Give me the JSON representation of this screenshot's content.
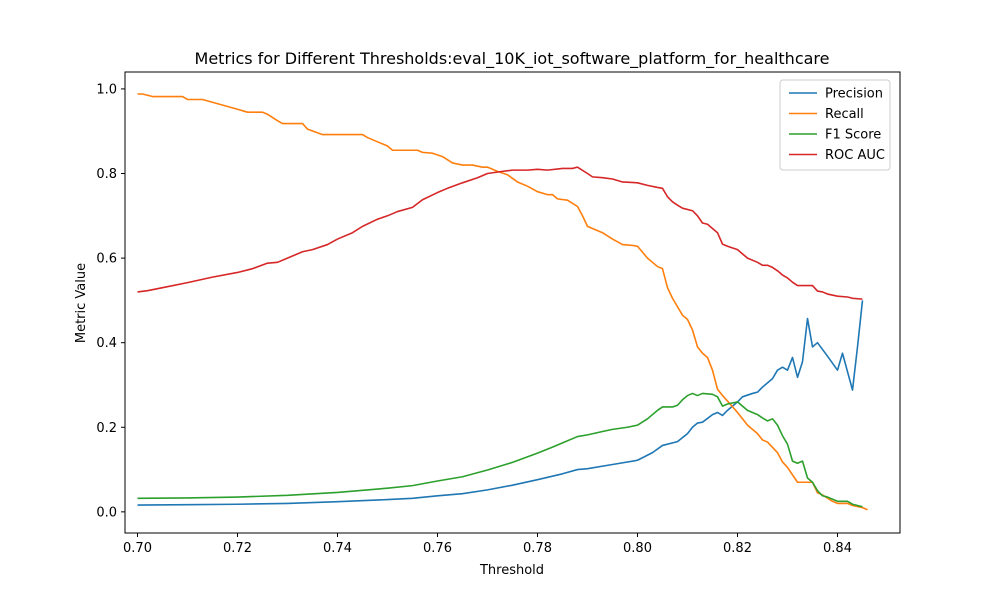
{
  "chart_data": {
    "type": "line",
    "title": "Metrics for Different Thresholds:eval_10K_iot_software_platform_for_healthcare",
    "xlabel": "Threshold",
    "ylabel": "Metric Value",
    "xlim": [
      0.6975,
      0.8525
    ],
    "ylim": [
      -0.05,
      1.04
    ],
    "xticks": [
      0.7,
      0.72,
      0.74,
      0.76,
      0.78,
      0.8,
      0.82,
      0.84
    ],
    "xtick_labels": [
      "0.70",
      "0.72",
      "0.74",
      "0.76",
      "0.78",
      "0.80",
      "0.82",
      "0.84"
    ],
    "yticks": [
      0.0,
      0.2,
      0.4,
      0.6,
      0.8,
      1.0
    ],
    "ytick_labels": [
      "0.0",
      "0.2",
      "0.4",
      "0.6",
      "0.8",
      "1.0"
    ],
    "grid": false,
    "legend_position": "top-right",
    "series": [
      {
        "name": "Precision",
        "color": "#1f77b4",
        "points": [
          [
            0.7,
            0.016
          ],
          [
            0.71,
            0.017
          ],
          [
            0.72,
            0.018
          ],
          [
            0.73,
            0.02
          ],
          [
            0.74,
            0.024
          ],
          [
            0.75,
            0.029
          ],
          [
            0.755,
            0.032
          ],
          [
            0.76,
            0.038
          ],
          [
            0.765,
            0.043
          ],
          [
            0.77,
            0.052
          ],
          [
            0.775,
            0.063
          ],
          [
            0.78,
            0.076
          ],
          [
            0.785,
            0.09
          ],
          [
            0.788,
            0.1
          ],
          [
            0.79,
            0.102
          ],
          [
            0.795,
            0.112
          ],
          [
            0.8,
            0.122
          ],
          [
            0.803,
            0.14
          ],
          [
            0.805,
            0.157
          ],
          [
            0.808,
            0.166
          ],
          [
            0.81,
            0.185
          ],
          [
            0.811,
            0.2
          ],
          [
            0.812,
            0.21
          ],
          [
            0.813,
            0.212
          ],
          [
            0.815,
            0.23
          ],
          [
            0.816,
            0.235
          ],
          [
            0.817,
            0.228
          ],
          [
            0.818,
            0.24
          ],
          [
            0.82,
            0.26
          ],
          [
            0.821,
            0.272
          ],
          [
            0.823,
            0.28
          ],
          [
            0.824,
            0.283
          ],
          [
            0.825,
            0.295
          ],
          [
            0.827,
            0.315
          ],
          [
            0.828,
            0.335
          ],
          [
            0.829,
            0.342
          ],
          [
            0.83,
            0.335
          ],
          [
            0.831,
            0.365
          ],
          [
            0.832,
            0.318
          ],
          [
            0.833,
            0.355
          ],
          [
            0.834,
            0.457
          ],
          [
            0.835,
            0.39
          ],
          [
            0.836,
            0.4
          ],
          [
            0.838,
            0.368
          ],
          [
            0.84,
            0.335
          ],
          [
            0.841,
            0.375
          ],
          [
            0.843,
            0.288
          ],
          [
            0.844,
            0.39
          ],
          [
            0.845,
            0.5
          ]
        ]
      },
      {
        "name": "Recall",
        "color": "#ff7f0e",
        "points": [
          [
            0.7,
            0.988
          ],
          [
            0.701,
            0.988
          ],
          [
            0.703,
            0.982
          ],
          [
            0.709,
            0.982
          ],
          [
            0.71,
            0.975
          ],
          [
            0.713,
            0.975
          ],
          [
            0.72,
            0.952
          ],
          [
            0.722,
            0.945
          ],
          [
            0.725,
            0.945
          ],
          [
            0.726,
            0.94
          ],
          [
            0.728,
            0.925
          ],
          [
            0.729,
            0.918
          ],
          [
            0.733,
            0.918
          ],
          [
            0.734,
            0.905
          ],
          [
            0.737,
            0.892
          ],
          [
            0.745,
            0.892
          ],
          [
            0.746,
            0.885
          ],
          [
            0.749,
            0.87
          ],
          [
            0.75,
            0.865
          ],
          [
            0.751,
            0.855
          ],
          [
            0.756,
            0.855
          ],
          [
            0.757,
            0.85
          ],
          [
            0.759,
            0.848
          ],
          [
            0.761,
            0.84
          ],
          [
            0.763,
            0.825
          ],
          [
            0.765,
            0.82
          ],
          [
            0.767,
            0.82
          ],
          [
            0.769,
            0.815
          ],
          [
            0.77,
            0.815
          ],
          [
            0.772,
            0.805
          ],
          [
            0.774,
            0.797
          ],
          [
            0.776,
            0.78
          ],
          [
            0.778,
            0.77
          ],
          [
            0.78,
            0.757
          ],
          [
            0.782,
            0.75
          ],
          [
            0.783,
            0.75
          ],
          [
            0.784,
            0.74
          ],
          [
            0.786,
            0.737
          ],
          [
            0.788,
            0.722
          ],
          [
            0.789,
            0.7
          ],
          [
            0.79,
            0.675
          ],
          [
            0.793,
            0.66
          ],
          [
            0.795,
            0.645
          ],
          [
            0.797,
            0.632
          ],
          [
            0.799,
            0.63
          ],
          [
            0.8,
            0.628
          ],
          [
            0.802,
            0.6
          ],
          [
            0.804,
            0.58
          ],
          [
            0.805,
            0.575
          ],
          [
            0.806,
            0.53
          ],
          [
            0.807,
            0.505
          ],
          [
            0.808,
            0.485
          ],
          [
            0.809,
            0.465
          ],
          [
            0.81,
            0.455
          ],
          [
            0.811,
            0.43
          ],
          [
            0.812,
            0.39
          ],
          [
            0.813,
            0.375
          ],
          [
            0.814,
            0.365
          ],
          [
            0.815,
            0.335
          ],
          [
            0.816,
            0.29
          ],
          [
            0.817,
            0.275
          ],
          [
            0.818,
            0.262
          ],
          [
            0.82,
            0.235
          ],
          [
            0.822,
            0.205
          ],
          [
            0.824,
            0.185
          ],
          [
            0.825,
            0.17
          ],
          [
            0.826,
            0.165
          ],
          [
            0.828,
            0.14
          ],
          [
            0.829,
            0.118
          ],
          [
            0.83,
            0.105
          ],
          [
            0.832,
            0.07
          ],
          [
            0.834,
            0.07
          ],
          [
            0.835,
            0.07
          ],
          [
            0.836,
            0.045
          ],
          [
            0.837,
            0.04
          ],
          [
            0.839,
            0.025
          ],
          [
            0.84,
            0.02
          ],
          [
            0.842,
            0.02
          ],
          [
            0.843,
            0.015
          ],
          [
            0.845,
            0.01
          ],
          [
            0.846,
            0.005
          ]
        ]
      },
      {
        "name": "F1 Score",
        "color": "#2ca02c",
        "points": [
          [
            0.7,
            0.032
          ],
          [
            0.71,
            0.033
          ],
          [
            0.72,
            0.035
          ],
          [
            0.73,
            0.039
          ],
          [
            0.74,
            0.046
          ],
          [
            0.75,
            0.056
          ],
          [
            0.755,
            0.062
          ],
          [
            0.76,
            0.073
          ],
          [
            0.765,
            0.083
          ],
          [
            0.77,
            0.099
          ],
          [
            0.775,
            0.117
          ],
          [
            0.78,
            0.139
          ],
          [
            0.783,
            0.153
          ],
          [
            0.785,
            0.163
          ],
          [
            0.788,
            0.178
          ],
          [
            0.79,
            0.182
          ],
          [
            0.793,
            0.19
          ],
          [
            0.795,
            0.195
          ],
          [
            0.798,
            0.2
          ],
          [
            0.8,
            0.205
          ],
          [
            0.802,
            0.22
          ],
          [
            0.804,
            0.24
          ],
          [
            0.805,
            0.248
          ],
          [
            0.807,
            0.248
          ],
          [
            0.808,
            0.252
          ],
          [
            0.809,
            0.265
          ],
          [
            0.81,
            0.275
          ],
          [
            0.811,
            0.28
          ],
          [
            0.812,
            0.275
          ],
          [
            0.813,
            0.28
          ],
          [
            0.815,
            0.278
          ],
          [
            0.816,
            0.272
          ],
          [
            0.817,
            0.25
          ],
          [
            0.818,
            0.255
          ],
          [
            0.82,
            0.26
          ],
          [
            0.821,
            0.25
          ],
          [
            0.822,
            0.24
          ],
          [
            0.823,
            0.235
          ],
          [
            0.824,
            0.23
          ],
          [
            0.825,
            0.222
          ],
          [
            0.826,
            0.215
          ],
          [
            0.827,
            0.22
          ],
          [
            0.828,
            0.205
          ],
          [
            0.829,
            0.18
          ],
          [
            0.83,
            0.16
          ],
          [
            0.831,
            0.12
          ],
          [
            0.832,
            0.115
          ],
          [
            0.833,
            0.12
          ],
          [
            0.834,
            0.08
          ],
          [
            0.835,
            0.07
          ],
          [
            0.836,
            0.05
          ],
          [
            0.837,
            0.038
          ],
          [
            0.838,
            0.035
          ],
          [
            0.84,
            0.025
          ],
          [
            0.842,
            0.025
          ],
          [
            0.843,
            0.018
          ],
          [
            0.845,
            0.012
          ]
        ]
      },
      {
        "name": "ROC AUC",
        "color": "#d62728",
        "points": [
          [
            0.7,
            0.52
          ],
          [
            0.702,
            0.523
          ],
          [
            0.705,
            0.53
          ],
          [
            0.71,
            0.542
          ],
          [
            0.715,
            0.555
          ],
          [
            0.72,
            0.566
          ],
          [
            0.723,
            0.575
          ],
          [
            0.726,
            0.588
          ],
          [
            0.728,
            0.59
          ],
          [
            0.73,
            0.6
          ],
          [
            0.733,
            0.615
          ],
          [
            0.735,
            0.62
          ],
          [
            0.738,
            0.632
          ],
          [
            0.74,
            0.645
          ],
          [
            0.743,
            0.66
          ],
          [
            0.745,
            0.675
          ],
          [
            0.748,
            0.692
          ],
          [
            0.75,
            0.7
          ],
          [
            0.752,
            0.71
          ],
          [
            0.755,
            0.72
          ],
          [
            0.757,
            0.738
          ],
          [
            0.76,
            0.755
          ],
          [
            0.762,
            0.765
          ],
          [
            0.765,
            0.778
          ],
          [
            0.768,
            0.79
          ],
          [
            0.77,
            0.8
          ],
          [
            0.773,
            0.805
          ],
          [
            0.775,
            0.808
          ],
          [
            0.778,
            0.808
          ],
          [
            0.78,
            0.81
          ],
          [
            0.782,
            0.808
          ],
          [
            0.785,
            0.812
          ],
          [
            0.787,
            0.812
          ],
          [
            0.788,
            0.815
          ],
          [
            0.79,
            0.8
          ],
          [
            0.791,
            0.792
          ],
          [
            0.793,
            0.79
          ],
          [
            0.795,
            0.787
          ],
          [
            0.797,
            0.78
          ],
          [
            0.8,
            0.778
          ],
          [
            0.802,
            0.772
          ],
          [
            0.804,
            0.767
          ],
          [
            0.805,
            0.765
          ],
          [
            0.806,
            0.745
          ],
          [
            0.807,
            0.733
          ],
          [
            0.808,
            0.725
          ],
          [
            0.809,
            0.718
          ],
          [
            0.811,
            0.712
          ],
          [
            0.812,
            0.7
          ],
          [
            0.813,
            0.683
          ],
          [
            0.814,
            0.68
          ],
          [
            0.815,
            0.67
          ],
          [
            0.816,
            0.66
          ],
          [
            0.817,
            0.633
          ],
          [
            0.818,
            0.628
          ],
          [
            0.82,
            0.62
          ],
          [
            0.821,
            0.61
          ],
          [
            0.822,
            0.6
          ],
          [
            0.824,
            0.59
          ],
          [
            0.825,
            0.583
          ],
          [
            0.826,
            0.583
          ],
          [
            0.827,
            0.578
          ],
          [
            0.828,
            0.57
          ],
          [
            0.829,
            0.56
          ],
          [
            0.83,
            0.553
          ],
          [
            0.831,
            0.543
          ],
          [
            0.832,
            0.535
          ],
          [
            0.834,
            0.535
          ],
          [
            0.835,
            0.535
          ],
          [
            0.836,
            0.522
          ],
          [
            0.837,
            0.52
          ],
          [
            0.838,
            0.515
          ],
          [
            0.84,
            0.51
          ],
          [
            0.842,
            0.508
          ],
          [
            0.843,
            0.505
          ],
          [
            0.845,
            0.503
          ]
        ]
      }
    ]
  }
}
